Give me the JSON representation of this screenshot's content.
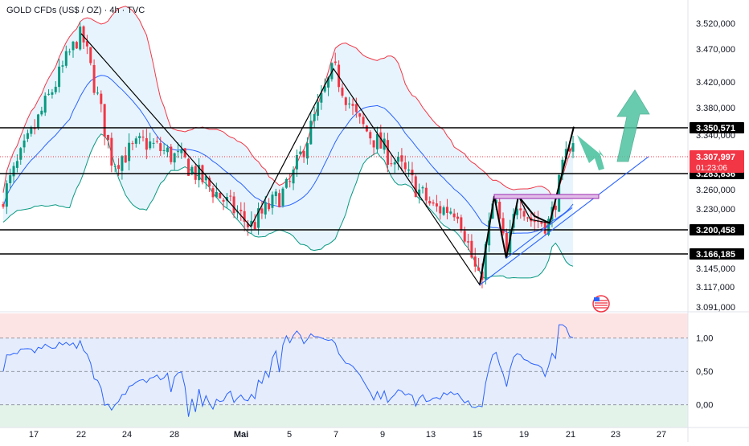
{
  "title": "GOLD CFDs (US$ / OZ) · 4h · TVC",
  "colors": {
    "up": "#089981",
    "down": "#f23645",
    "bb_upper": "#f23645",
    "bb_lower": "#089981",
    "bb_mid": "#2962ff",
    "bb_fill": "#e3f2fd",
    "level_line": "#000000",
    "trend_line": "#2962ff",
    "zone": "#9c27b0",
    "arrow": "#4fc3a1",
    "price_badge": "#f23645",
    "osc_line": "#2962ff",
    "osc_top_band": "#fde4e4",
    "osc_mid_band": "#e5ecfb",
    "osc_low_band": "#e3f3ea"
  },
  "flag_icon": "us-flag-icon",
  "chart_data": {
    "type": "candlestick",
    "price_axis": {
      "ticks": [
        3520,
        3470,
        3420,
        3380,
        3340,
        3260,
        3230,
        3145,
        3117,
        3091
      ],
      "tick_labels": [
        "3.520,000",
        "3.470,000",
        "3.420,000",
        "3.380,000",
        "3.340,000",
        "3.260,000",
        "3.230,000",
        "3.145,000",
        "3.117,000",
        "3.091,000"
      ]
    },
    "levels": [
      {
        "value": 3350.571,
        "label": "3.350,571"
      },
      {
        "value": 3283.836,
        "label": "3.283,836"
      },
      {
        "value": 3200.458,
        "label": "3.200,458"
      },
      {
        "value": 3166.185,
        "label": "3.166,185"
      }
    ],
    "current_price": {
      "value": 3307.997,
      "label": "3.307,997",
      "countdown": "01:23:06"
    },
    "x_axis": {
      "labels": [
        "17",
        "22",
        "24",
        "28",
        "Mai",
        "5",
        "7",
        "9",
        "13",
        "15",
        "19",
        "21",
        "23",
        "27"
      ]
    },
    "path_points": [
      [
        "22",
        3500
      ],
      [
        "Mai",
        3205
      ],
      [
        "7",
        3440
      ],
      [
        "15",
        3120
      ],
      [
        "16",
        3250
      ],
      [
        "17",
        3160
      ],
      [
        "18",
        3250
      ],
      [
        "19",
        3210
      ],
      [
        "20",
        3245
      ],
      [
        "20b",
        3210
      ],
      [
        "21",
        3352
      ],
      [
        "22",
        3298
      ],
      [
        "23",
        3405
      ]
    ],
    "oscillator": {
      "ticks": [
        1.0,
        0.5,
        0.0
      ],
      "tick_labels": [
        "1,00",
        "0,50",
        "0,00"
      ],
      "range": [
        -0.22,
        1.25
      ]
    }
  }
}
